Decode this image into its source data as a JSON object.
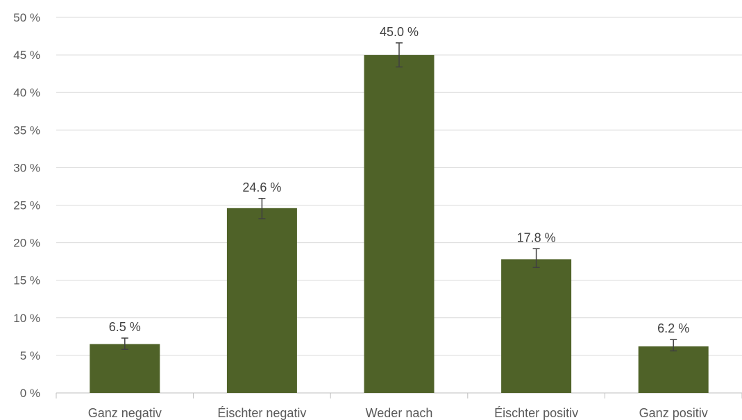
{
  "chart_data": {
    "type": "bar",
    "categories": [
      "Ganz negativ",
      "Éischter negativ",
      "Weder nach",
      "Éischter positiv",
      "Ganz positiv"
    ],
    "values": [
      6.5,
      24.6,
      45.0,
      17.8,
      6.2
    ],
    "error": [
      {
        "low": 5.8,
        "high": 7.3
      },
      {
        "low": 23.2,
        "high": 25.9
      },
      {
        "low": 43.4,
        "high": 46.6
      },
      {
        "low": 16.7,
        "high": 19.2
      },
      {
        "low": 5.6,
        "high": 7.1
      }
    ],
    "data_labels": [
      "6.5 %",
      "24.6 %",
      "45.0 %",
      "17.8 %",
      "6.2 %"
    ],
    "y_ticks": [
      "0 %",
      "5 %",
      "10 %",
      "15 %",
      "20 %",
      "25 %",
      "30 %",
      "35 %",
      "40 %",
      "45 %",
      "50 %"
    ],
    "ylim": [
      0,
      50
    ],
    "y_step": 5,
    "grid": true,
    "title": "",
    "xlabel": "",
    "ylabel": "",
    "colors": {
      "bar": "#4f6228",
      "grid": "#d9d9d9",
      "text": "#595959"
    }
  }
}
